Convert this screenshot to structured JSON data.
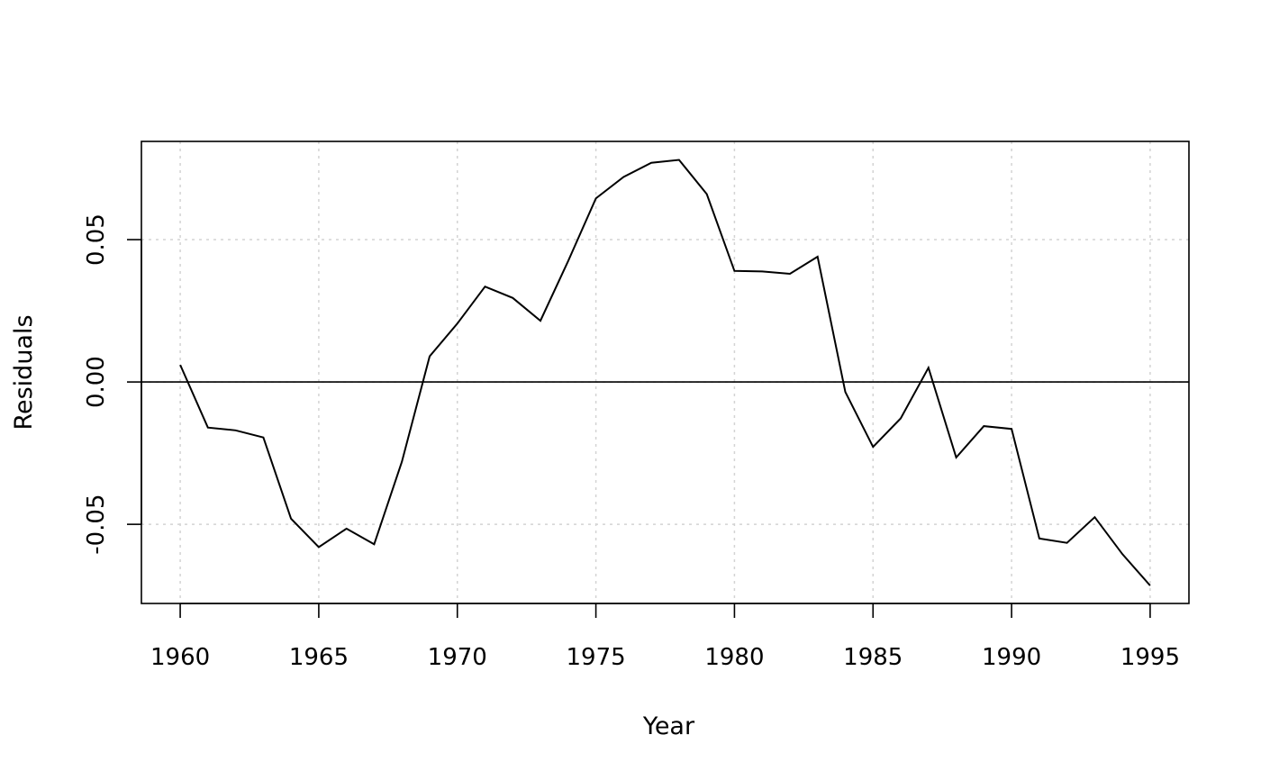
{
  "chart_data": {
    "type": "line",
    "title": "",
    "xlabel": "Year",
    "ylabel": "Residuals",
    "xlim": [
      1958.6,
      1996.4
    ],
    "ylim": [
      -0.0778,
      0.0845
    ],
    "xticks": [
      "1960",
      "1965",
      "1970",
      "1975",
      "1980",
      "1985",
      "1990",
      "1995"
    ],
    "yticks": [
      "-0.05",
      "0.00",
      "0.05"
    ],
    "grid": true,
    "reference_line": 0,
    "x": [
      1960,
      1961,
      1962,
      1963,
      1964,
      1965,
      1966,
      1967,
      1968,
      1969,
      1970,
      1971,
      1972,
      1973,
      1974,
      1975,
      1976,
      1977,
      1978,
      1979,
      1980,
      1981,
      1982,
      1983,
      1984,
      1985,
      1986,
      1987,
      1988,
      1989,
      1990,
      1991,
      1992,
      1993,
      1994,
      1995
    ],
    "series": [
      {
        "values": [
          0.006,
          -0.016,
          -0.017,
          -0.0195,
          -0.048,
          -0.058,
          -0.0515,
          -0.057,
          -0.028,
          0.009,
          0.0205,
          0.0335,
          0.0295,
          0.0215,
          0.0425,
          0.0645,
          0.072,
          0.077,
          0.078,
          0.066,
          0.039,
          0.0388,
          0.038,
          0.044,
          -0.0035,
          -0.0228,
          -0.0128,
          0.005,
          -0.0265,
          -0.0155,
          -0.0165,
          -0.055,
          -0.0565,
          -0.0475,
          -0.0605,
          -0.0715
        ]
      }
    ]
  }
}
